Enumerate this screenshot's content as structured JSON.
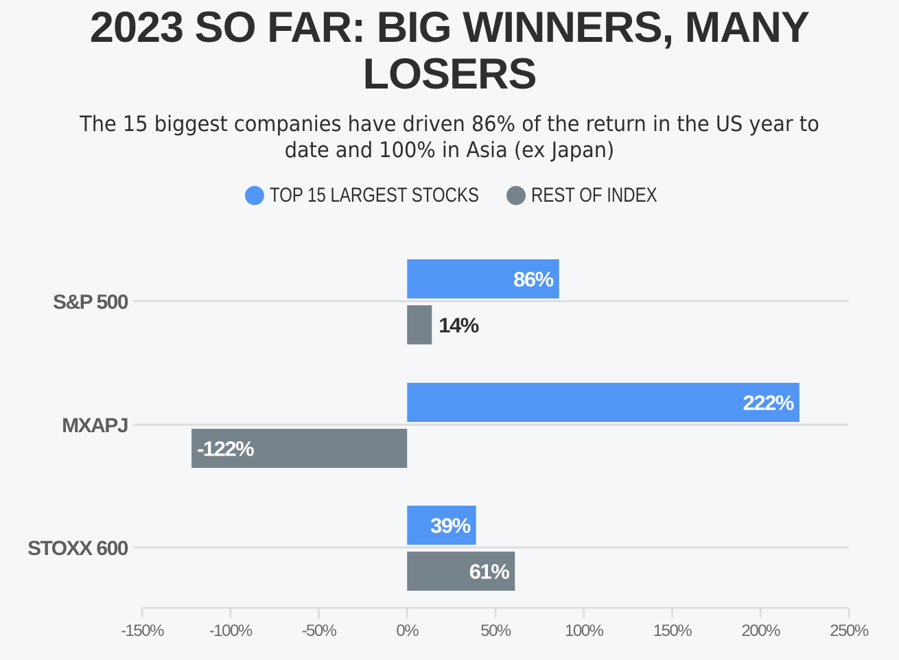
{
  "title": "2023 SO FAR: BIG WINNERS, MANY LOSERS",
  "subtitle": "The 15 biggest companies have driven 86% of the return in the US year to date and 100% in Asia (ex Japan)",
  "colors": {
    "top15": "#5296f5",
    "rest": "#76838b",
    "grid": "#dcdde0",
    "text": "#5d5d60"
  },
  "chart_data": {
    "type": "bar",
    "orientation": "horizontal",
    "categories": [
      "S&P 500",
      "MXAPJ",
      "STOXX 600"
    ],
    "series": [
      {
        "name": "TOP 15 LARGEST STOCKS",
        "values": [
          86,
          222,
          39
        ],
        "labels": [
          "86%",
          "222%",
          "39%"
        ]
      },
      {
        "name": "REST OF INDEX",
        "values": [
          14,
          -122,
          61
        ],
        "labels": [
          "14%",
          "-122%",
          "61%"
        ]
      }
    ],
    "xlim": [
      -150,
      250
    ],
    "xticks": [
      -150,
      -100,
      -50,
      0,
      50,
      100,
      150,
      200,
      250
    ],
    "xtick_labels": [
      "-150%",
      "-100%",
      "-50%",
      "0%",
      "50%",
      "100%",
      "150%",
      "200%",
      "250%"
    ],
    "legend_position": "top-center",
    "grid": true
  }
}
